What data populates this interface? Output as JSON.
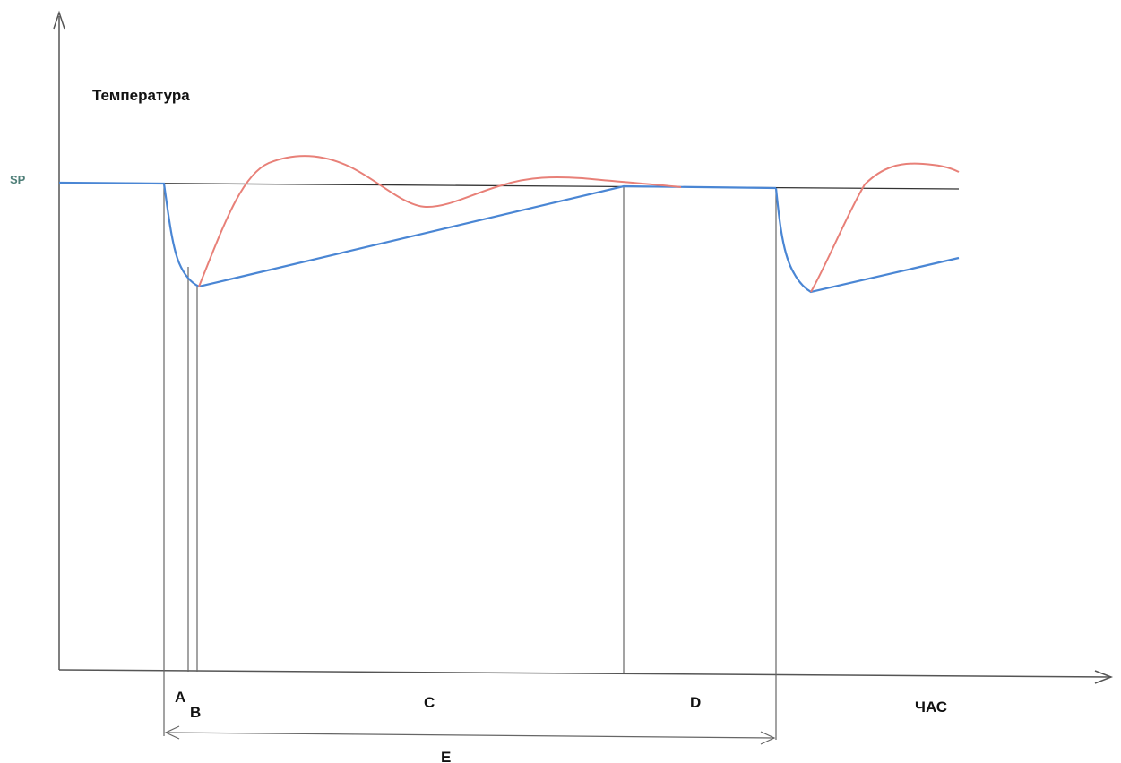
{
  "diagram": {
    "y_axis_label": "Температура",
    "x_axis_label": "ЧАС",
    "setpoint_label": "SP",
    "phase_labels": {
      "a": "A",
      "b": "B",
      "c": "C",
      "d": "D",
      "e": "E"
    },
    "colors": {
      "axes": "#555555",
      "setpoint_line": "#333333",
      "blue_curve": "#4a86d4",
      "red_curve": "#e88078",
      "guide_lines": "#666666"
    }
  }
}
